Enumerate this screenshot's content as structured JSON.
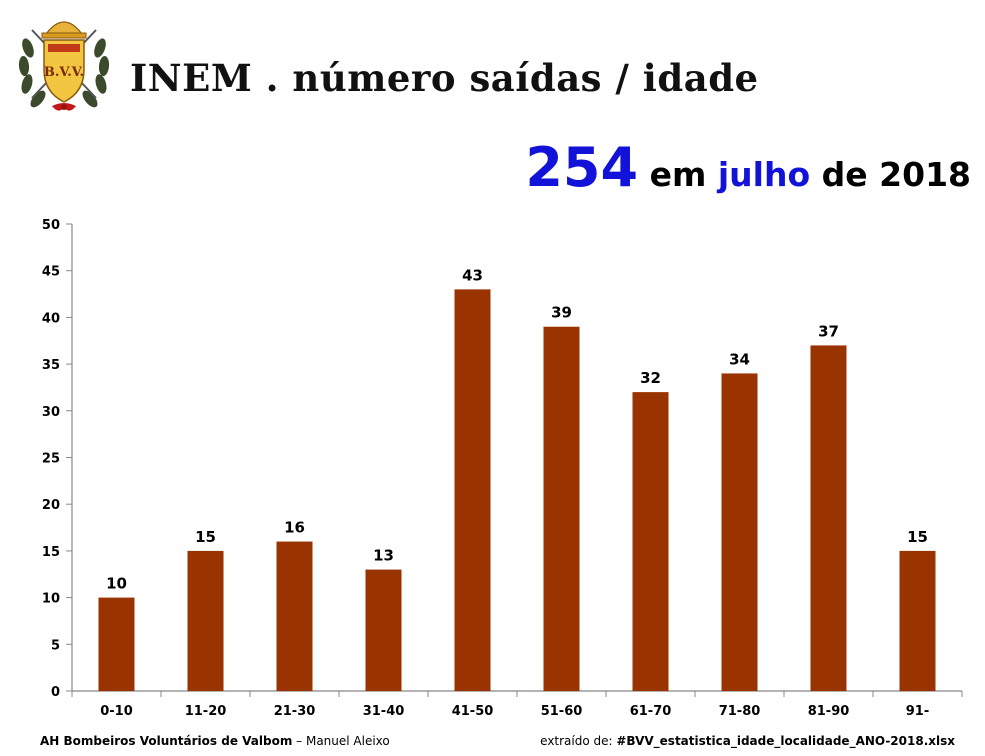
{
  "header": {
    "title": "INEM . número saídas / idade",
    "logo_text": "B.V.V."
  },
  "headline": {
    "total": "254",
    "pre_month": "em",
    "month": "julho",
    "post_month": "de 2018"
  },
  "footer": {
    "org": "AH Bombeiros Voluntários de Valbom",
    "sep": " – ",
    "author": "Manuel Aleixo",
    "source_label": "extraído de: ",
    "source_file": "#BVV_estatistica_idade_localidade_ANO-2018.xlsx"
  },
  "colors": {
    "bar": "#993300",
    "accent": "#1212d8"
  },
  "chart_data": {
    "type": "bar",
    "categories": [
      "0-10",
      "11-20",
      "21-30",
      "31-40",
      "41-50",
      "51-60",
      "61-70",
      "71-80",
      "81-90",
      "91-"
    ],
    "values": [
      10,
      15,
      16,
      13,
      43,
      39,
      32,
      34,
      37,
      15
    ],
    "yticks": [
      0,
      5,
      10,
      15,
      20,
      25,
      30,
      35,
      40,
      45,
      50
    ],
    "ylim": [
      0,
      50
    ],
    "grid": false,
    "legend": "none",
    "data_labels": true
  }
}
